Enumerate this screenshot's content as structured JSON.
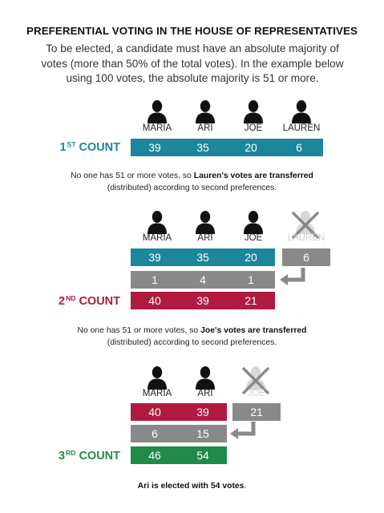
{
  "title": "PREFERENTIAL VOTING IN THE HOUSE OF REPRESENTATIVES",
  "intro": "To be elected, a candidate must have an absolute majority of votes (more than 50% of the total votes). In the example below using 100 votes, the absolute majority is 51 or more.",
  "colors": {
    "first_count": "#1b869c",
    "transfer": "#898989",
    "second_count": "#b01a3f",
    "third_count": "#1f8a4a"
  },
  "candidates": [
    "MARIA",
    "ARI",
    "JOE",
    "LAUREN"
  ],
  "count1": {
    "label": "1",
    "suffix": "ST",
    "word": "COUNT",
    "values": [
      "39",
      "35",
      "20",
      "6"
    ]
  },
  "note1": {
    "pre": "No one has 51 or more votes, so ",
    "bold": "Lauren's votes are transferred",
    "post": "(distributed) according to second preferences."
  },
  "count2": {
    "label": "2",
    "suffix": "ND",
    "word": "COUNT",
    "previous": [
      "39",
      "35",
      "20"
    ],
    "excluded_value": "6",
    "transfers": [
      "1",
      "4",
      "1"
    ],
    "values": [
      "40",
      "39",
      "21"
    ]
  },
  "note2": {
    "pre": "No one has 51 or more votes, so ",
    "bold": "Joe's votes are transferred",
    "post": "(distributed) according to second preferences."
  },
  "count3": {
    "label": "3",
    "suffix": "RD",
    "word": "COUNT",
    "previous": [
      "40",
      "39"
    ],
    "excluded_value": "21",
    "transfers": [
      "6",
      "15"
    ],
    "values": [
      "46",
      "54"
    ]
  },
  "result": {
    "bold": "Ari is elected with 54 votes",
    "end": "."
  }
}
